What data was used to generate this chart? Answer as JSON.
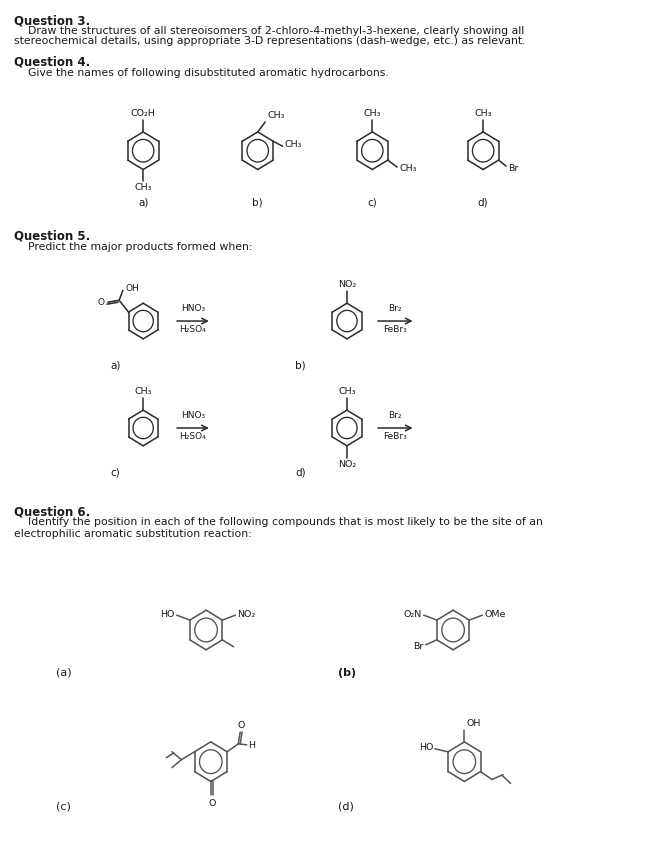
{
  "background_color": "#ffffff",
  "page_width": 6.52,
  "page_height": 8.52,
  "dpi": 100,
  "text_color": "#1a1a1a",
  "ring_color": "#2a2a2a",
  "q3_title": "Question 3.",
  "q3_body1": "    Draw the structures of all stereoisomers of 2-chloro-4-methyl-3-hexene, clearly showing all",
  "q3_body2": "stereochemical details, using appropriate 3-D representations (dash-wedge, etc.) as relevant.",
  "q4_title": "Question 4.",
  "q4_body": "    Give the names of following disubstituted aromatic hydrocarbons.",
  "q5_title": "Question 5.",
  "q5_body": "    Predict the major products formed when:",
  "q6_title": "Question 6.",
  "q6_body1": "    Identify the position in each of the following compounds that is most likely to be the site of an",
  "q6_body2": "electrophilic aromatic substitution reaction:"
}
